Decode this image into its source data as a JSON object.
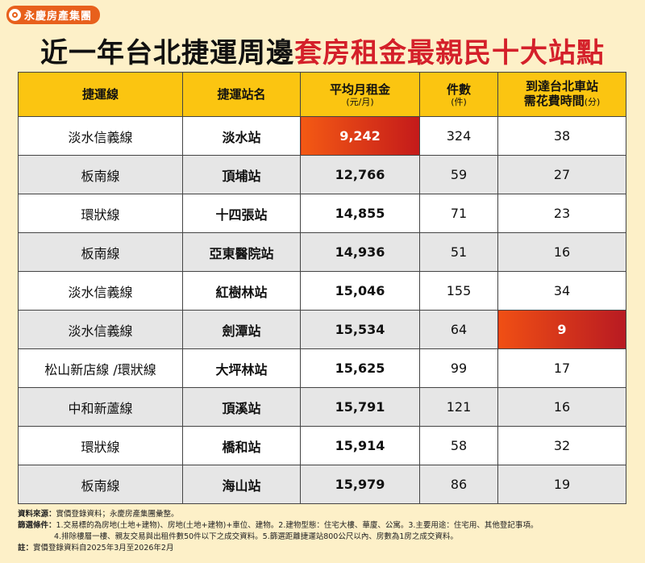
{
  "brand": {
    "name": "永慶房產集團"
  },
  "title": {
    "part1": "近一年台北捷運周邊",
    "part2": "套房租金最親民十大站點"
  },
  "table": {
    "headers": {
      "line": "捷運線",
      "station": "捷運站名",
      "rent": "平均月租金",
      "rent_unit": "(元/月)",
      "count": "件數",
      "count_unit": "(件)",
      "time_line1": "到達台北車站",
      "time_line2": "需花費時間",
      "time_unit": "(分)"
    },
    "rows": [
      {
        "line": "淡水信義線",
        "station": "淡水站",
        "rent": "9,242",
        "count": "324",
        "time": "38"
      },
      {
        "line": "板南線",
        "station": "頂埔站",
        "rent": "12,766",
        "count": "59",
        "time": "27"
      },
      {
        "line": "環狀線",
        "station": "十四張站",
        "rent": "14,855",
        "count": "71",
        "time": "23"
      },
      {
        "line": "板南線",
        "station": "亞東醫院站",
        "rent": "14,936",
        "count": "51",
        "time": "16"
      },
      {
        "line": "淡水信義線",
        "station": "紅樹林站",
        "rent": "15,046",
        "count": "155",
        "time": "34"
      },
      {
        "line": "淡水信義線",
        "station": "劍潭站",
        "rent": "15,534",
        "count": "64",
        "time": "9"
      },
      {
        "line": "松山新店線 /環狀線",
        "station": "大坪林站",
        "rent": "15,625",
        "count": "99",
        "time": "17"
      },
      {
        "line": "中和新蘆線",
        "station": "頂溪站",
        "rent": "15,791",
        "count": "121",
        "time": "16"
      },
      {
        "line": "環狀線",
        "station": "橋和站",
        "rent": "15,914",
        "count": "58",
        "time": "32"
      },
      {
        "line": "板南線",
        "station": "海山站",
        "rent": "15,979",
        "count": "86",
        "time": "19"
      }
    ]
  },
  "notes": {
    "source_label": "資料來源：",
    "source_text": "實價登錄資料；永慶房產集團彙整。",
    "criteria_label": "篩選條件：",
    "criteria_line1": "1.交易標的為房地(土地+建物)、房地(土地+建物)+車位、建物。2.建物型態：住宅大樓、華廈、公寓。3.主要用途：住宅用、其他登記事項。",
    "criteria_line2": "4.排除樓層一樓、親友交易與出租件數50件以下之成交資料。5.篩選距離捷運站800公尺以內、房數為1房之成交資料。",
    "note_label": "註：",
    "note_text": "實價登錄資料自2025年3月至2026年2月"
  },
  "colors": {
    "header_bg": "#fbc511",
    "highlight": "#d4202a",
    "page_bg": "#fdf0c8"
  }
}
